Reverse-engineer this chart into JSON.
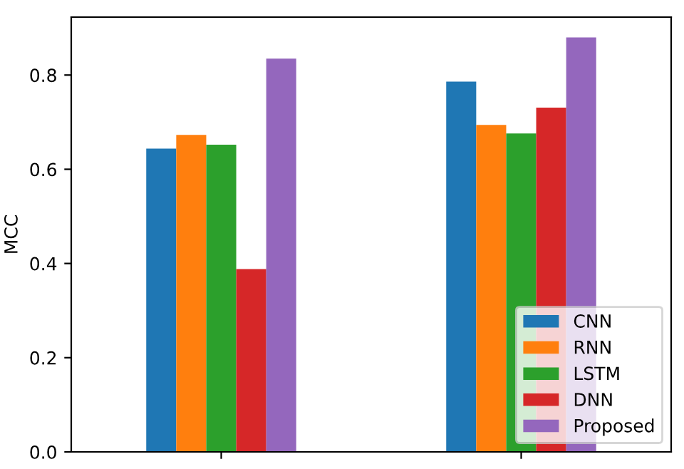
{
  "chart_data": {
    "type": "bar",
    "ylabel": "MCC",
    "categories": [
      null,
      null
    ],
    "series": [
      {
        "name": "CNN",
        "color": "#1f77b4",
        "values": [
          0.644,
          0.786
        ]
      },
      {
        "name": "RNN",
        "color": "#ff7f0e",
        "values": [
          0.673,
          0.694
        ]
      },
      {
        "name": "LSTM",
        "color": "#2ca02c",
        "values": [
          0.652,
          0.676
        ]
      },
      {
        "name": "DNN",
        "color": "#d62728",
        "values": [
          0.388,
          0.731
        ]
      },
      {
        "name": "Proposed",
        "color": "#9467bd",
        "values": [
          0.835,
          0.88
        ]
      }
    ],
    "ylim": [
      0,
      0.923
    ],
    "yticks": [
      {
        "value": 0,
        "label": "0.0"
      },
      0.2,
      0.4,
      0.6,
      0.8
    ],
    "grid": false,
    "legend": "bottom right"
  }
}
